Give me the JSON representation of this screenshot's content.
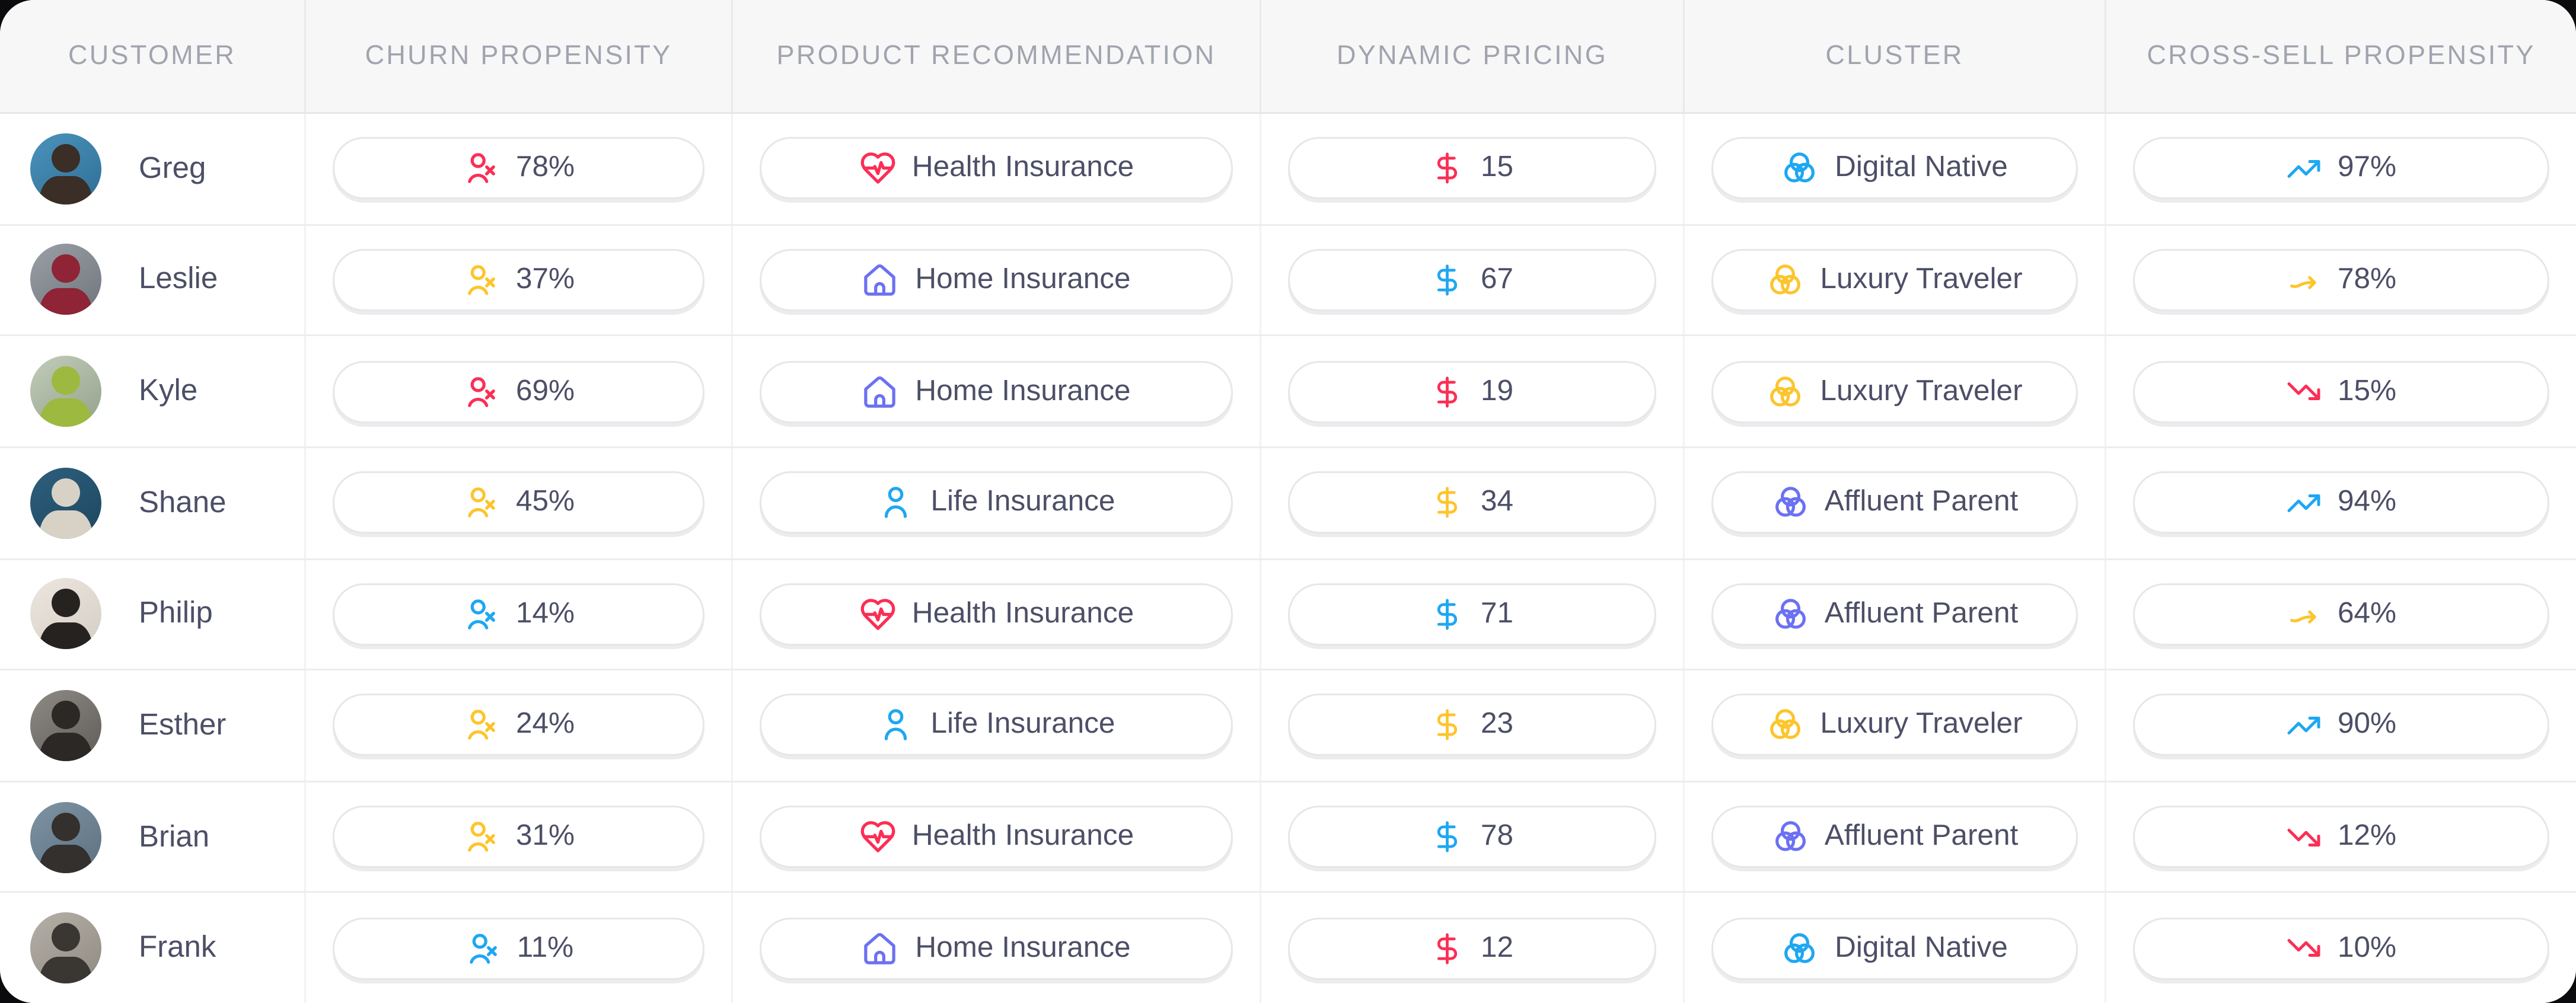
{
  "colors": {
    "red": "#fb2e55",
    "yellow": "#fdc52c",
    "blue": "#1ea7f2",
    "indigo": "#6b71f2",
    "text": "#4c4f66",
    "header_text": "#a1a4ae",
    "header_bg": "#f7f7f8",
    "pill_border": "#e7e7ea",
    "row_divider": "#ededf0"
  },
  "table": {
    "columns": [
      {
        "key": "customer",
        "label": "CUSTOMER"
      },
      {
        "key": "churn",
        "label": "CHURN PROPENSITY"
      },
      {
        "key": "product",
        "label": "PRODUCT RECOMMENDATION"
      },
      {
        "key": "pricing",
        "label": "DYNAMIC PRICING"
      },
      {
        "key": "cluster",
        "label": "CLUSTER"
      },
      {
        "key": "cross_sell",
        "label": "CROSS-SELL PROPENSITY"
      }
    ],
    "rows": [
      {
        "customer": {
          "name": "Greg",
          "avatar_from": "#4b93bb",
          "avatar_to": "#2f6e96",
          "avatar_fig": "#3a2e26"
        },
        "churn": {
          "value": "78%",
          "icon": "user-x-icon",
          "color": "red"
        },
        "product": {
          "label": "Health Insurance",
          "icon": "heart-pulse-icon",
          "color": "red"
        },
        "pricing": {
          "value": "15",
          "icon": "dollar-icon",
          "color": "red"
        },
        "cluster": {
          "label": "Digital Native",
          "icon": "venn-diagram-icon",
          "color": "blue"
        },
        "cross_sell": {
          "value": "97%",
          "icon": "trending-up-icon",
          "color": "blue"
        }
      },
      {
        "customer": {
          "name": "Leslie",
          "avatar_from": "#9aa0a6",
          "avatar_to": "#6f757c",
          "avatar_fig": "#8e2436"
        },
        "churn": {
          "value": "37%",
          "icon": "user-x-icon",
          "color": "yellow"
        },
        "product": {
          "label": "Home Insurance",
          "icon": "house-icon",
          "color": "indigo"
        },
        "pricing": {
          "value": "67",
          "icon": "dollar-icon",
          "color": "blue"
        },
        "cluster": {
          "label": "Luxury Traveler",
          "icon": "venn-diagram-icon",
          "color": "yellow"
        },
        "cross_sell": {
          "value": "78%",
          "icon": "arrow-right-icon",
          "color": "yellow"
        }
      },
      {
        "customer": {
          "name": "Kyle",
          "avatar_from": "#c3cdb9",
          "avatar_to": "#93a18c",
          "avatar_fig": "#9db93f"
        },
        "churn": {
          "value": "69%",
          "icon": "user-x-icon",
          "color": "red"
        },
        "product": {
          "label": "Home Insurance",
          "icon": "house-icon",
          "color": "indigo"
        },
        "pricing": {
          "value": "19",
          "icon": "dollar-icon",
          "color": "red"
        },
        "cluster": {
          "label": "Luxury Traveler",
          "icon": "venn-diagram-icon",
          "color": "yellow"
        },
        "cross_sell": {
          "value": "15%",
          "icon": "trending-down-icon",
          "color": "red"
        }
      },
      {
        "customer": {
          "name": "Shane",
          "avatar_from": "#2e5f7e",
          "avatar_to": "#1d475f",
          "avatar_fig": "#d8d2c6"
        },
        "churn": {
          "value": "45%",
          "icon": "user-x-icon",
          "color": "yellow"
        },
        "product": {
          "label": "Life Insurance",
          "icon": "user-icon",
          "color": "blue"
        },
        "pricing": {
          "value": "34",
          "icon": "dollar-icon",
          "color": "yellow"
        },
        "cluster": {
          "label": "Affluent Parent",
          "icon": "venn-diagram-icon",
          "color": "indigo"
        },
        "cross_sell": {
          "value": "94%",
          "icon": "trending-up-icon",
          "color": "blue"
        }
      },
      {
        "customer": {
          "name": "Philip",
          "avatar_from": "#ece6de",
          "avatar_to": "#d4cec6",
          "avatar_fig": "#26221f"
        },
        "churn": {
          "value": "14%",
          "icon": "user-x-icon",
          "color": "blue"
        },
        "product": {
          "label": "Health Insurance",
          "icon": "heart-pulse-icon",
          "color": "red"
        },
        "pricing": {
          "value": "71",
          "icon": "dollar-icon",
          "color": "blue"
        },
        "cluster": {
          "label": "Affluent Parent",
          "icon": "venn-diagram-icon",
          "color": "indigo"
        },
        "cross_sell": {
          "value": "64%",
          "icon": "arrow-right-icon",
          "color": "yellow"
        }
      },
      {
        "customer": {
          "name": "Esther",
          "avatar_from": "#8e8a86",
          "avatar_to": "#5f5c58",
          "avatar_fig": "#2b2825"
        },
        "churn": {
          "value": "24%",
          "icon": "user-x-icon",
          "color": "yellow"
        },
        "product": {
          "label": "Life Insurance",
          "icon": "user-icon",
          "color": "blue"
        },
        "pricing": {
          "value": "23",
          "icon": "dollar-icon",
          "color": "yellow"
        },
        "cluster": {
          "label": "Luxury Traveler",
          "icon": "venn-diagram-icon",
          "color": "yellow"
        },
        "cross_sell": {
          "value": "90%",
          "icon": "trending-up-icon",
          "color": "blue"
        }
      },
      {
        "customer": {
          "name": "Brian",
          "avatar_from": "#7e93a3",
          "avatar_to": "#5c7181",
          "avatar_fig": "#33302e"
        },
        "churn": {
          "value": "31%",
          "icon": "user-x-icon",
          "color": "yellow"
        },
        "product": {
          "label": "Health Insurance",
          "icon": "heart-pulse-icon",
          "color": "red"
        },
        "pricing": {
          "value": "78",
          "icon": "dollar-icon",
          "color": "blue"
        },
        "cluster": {
          "label": "Affluent Parent",
          "icon": "venn-diagram-icon",
          "color": "indigo"
        },
        "cross_sell": {
          "value": "12%",
          "icon": "trending-down-icon",
          "color": "red"
        }
      },
      {
        "customer": {
          "name": "Frank",
          "avatar_from": "#b5b0a8",
          "avatar_to": "#8f8a82",
          "avatar_fig": "#3a3631"
        },
        "churn": {
          "value": "11%",
          "icon": "user-x-icon",
          "color": "blue"
        },
        "product": {
          "label": "Home Insurance",
          "icon": "house-icon",
          "color": "indigo"
        },
        "pricing": {
          "value": "12",
          "icon": "dollar-icon",
          "color": "red"
        },
        "cluster": {
          "label": "Digital Native",
          "icon": "venn-diagram-icon",
          "color": "blue"
        },
        "cross_sell": {
          "value": "10%",
          "icon": "trending-down-icon",
          "color": "red"
        }
      }
    ]
  }
}
